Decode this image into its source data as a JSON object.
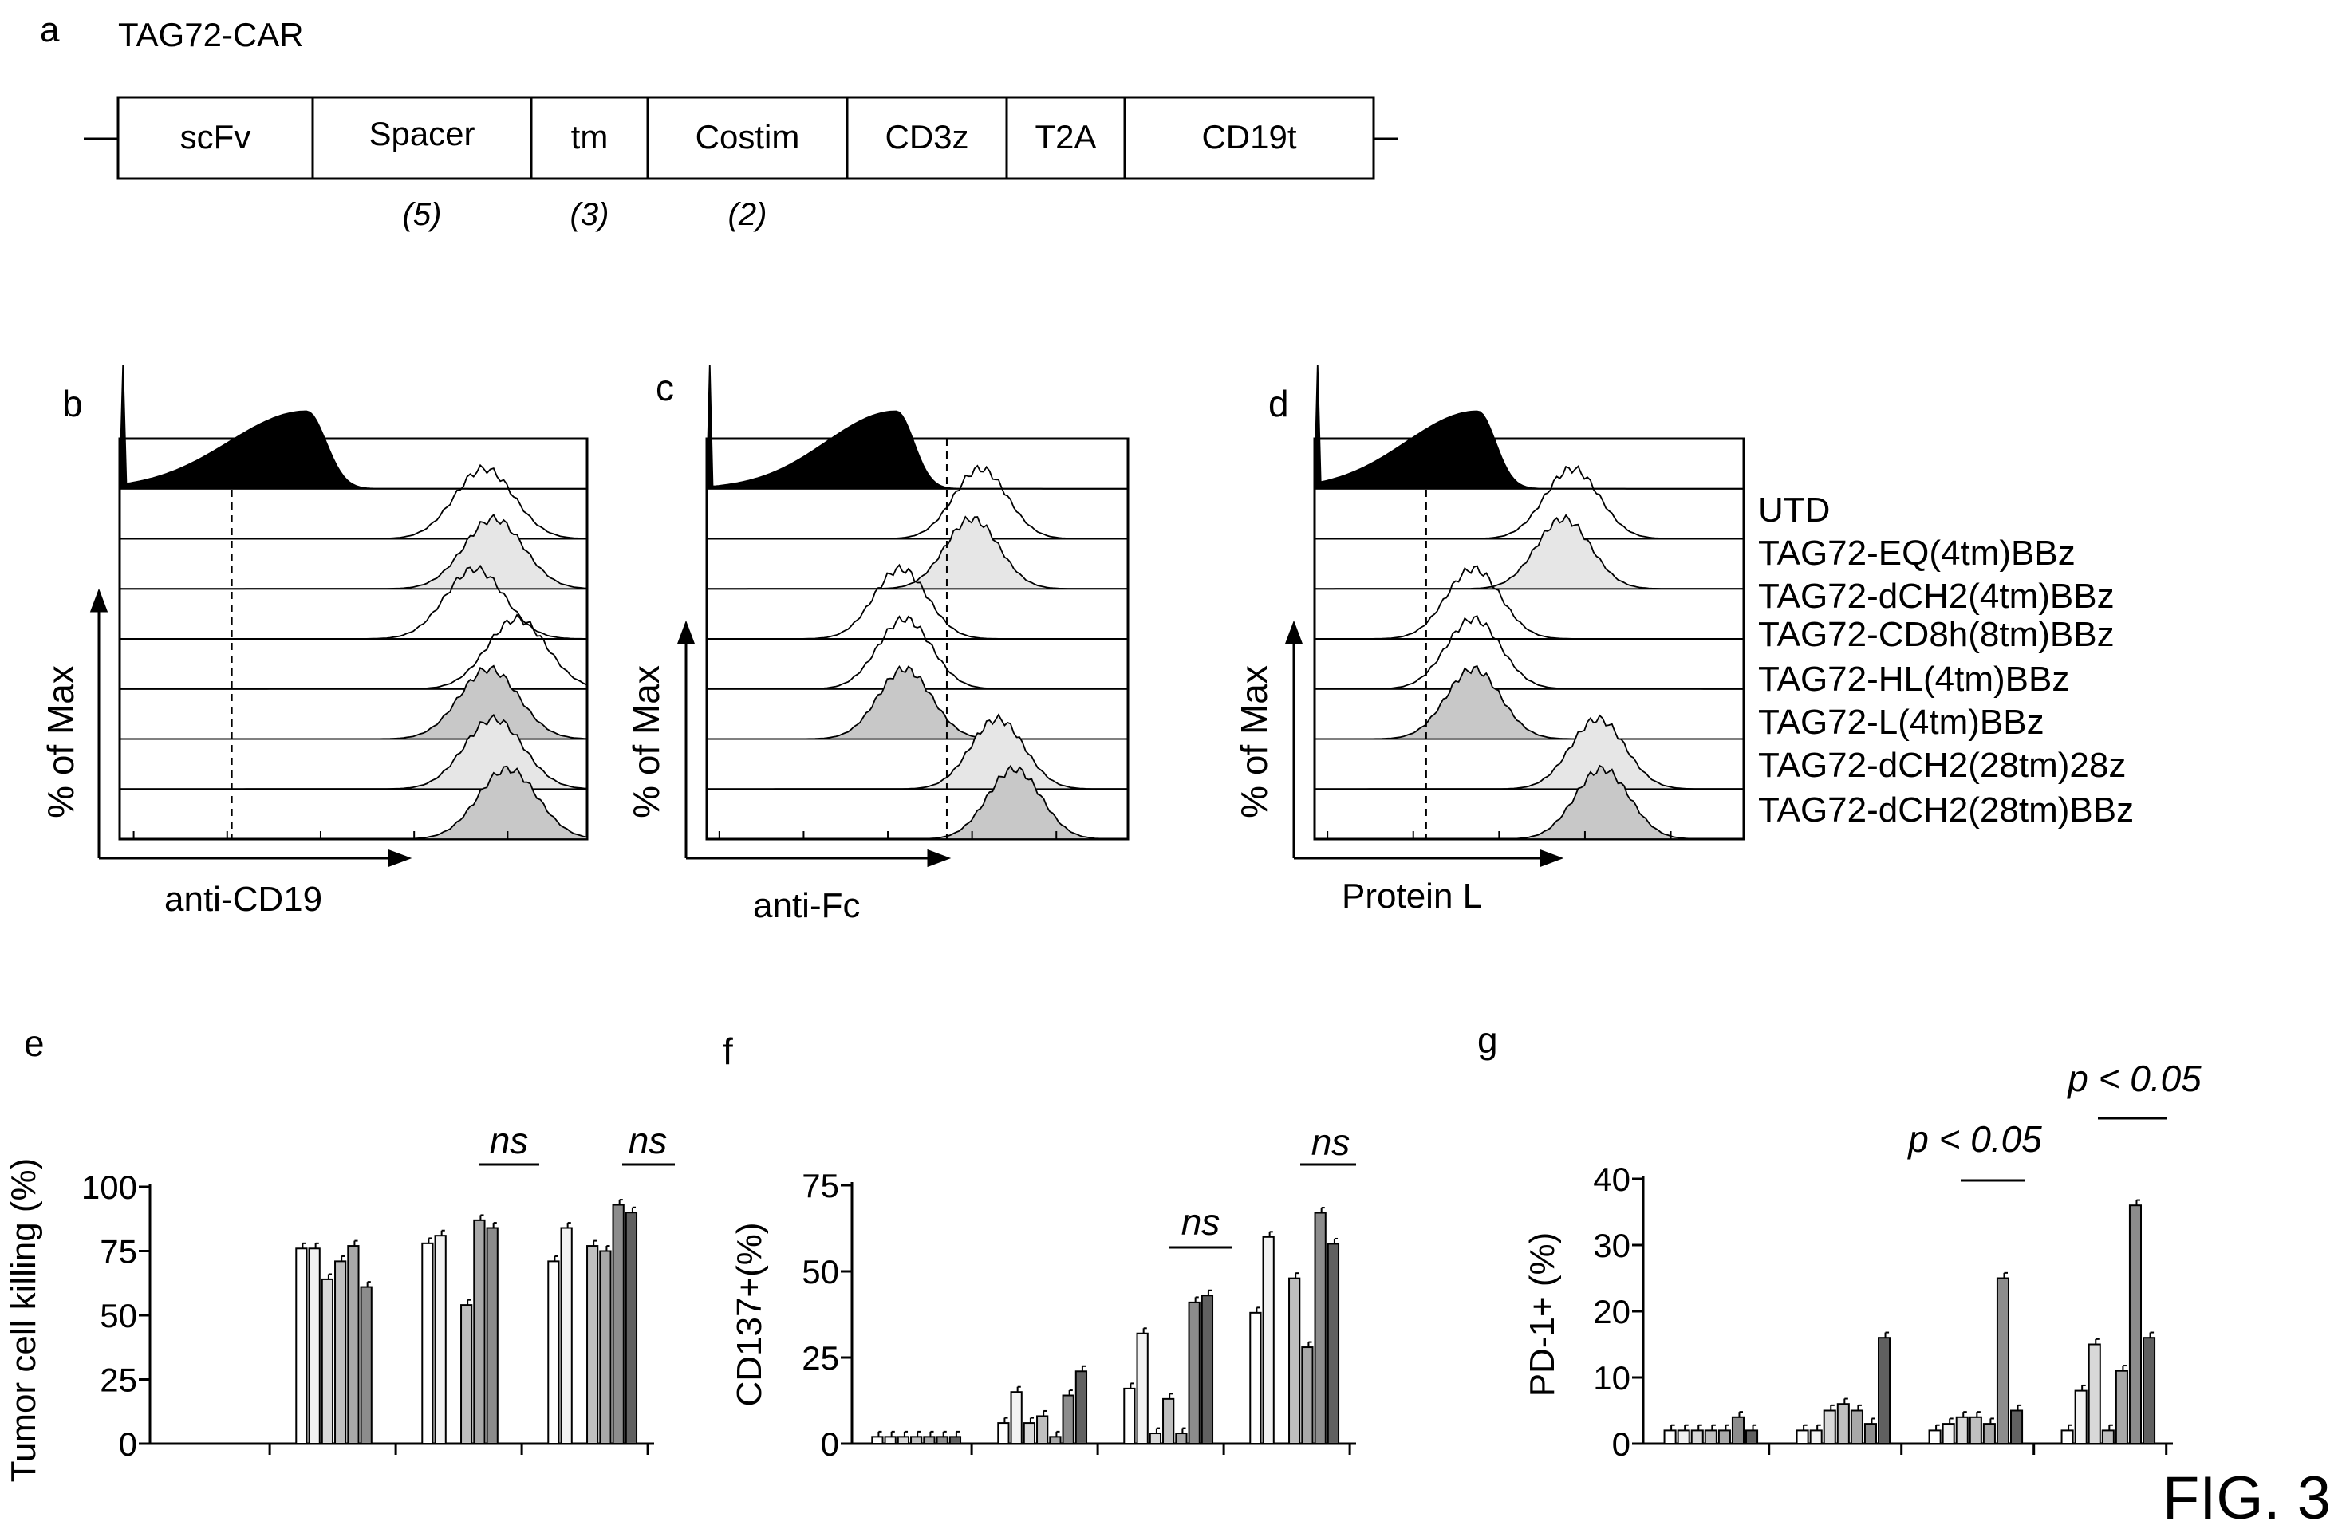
{
  "panel_letters": {
    "a": "a",
    "b": "b",
    "c": "c",
    "d": "d",
    "e": "e",
    "f": "f",
    "g": "g"
  },
  "construct": {
    "title": "TAG72-CAR",
    "segments": [
      "scFv",
      "Spacer",
      "tm",
      "Costim",
      "CD3z",
      "T2A",
      "CD19t"
    ],
    "counts": [
      "(5)",
      "(3)",
      "(2)"
    ]
  },
  "flow": {
    "y_label": "% of Max",
    "x_labels": [
      "anti-CD19",
      "anti-Fc",
      "Protein L"
    ],
    "legend": [
      "UTD",
      "TAG72-EQ(4tm)BBz",
      "TAG72-dCH2(4tm)BBz",
      "TAG72-CD8h(8tm)BBz",
      "TAG72-HL(4tm)BBz",
      "TAG72-L(4tm)BBz",
      "TAG72-dCH2(28tm)28z",
      "TAG72-dCH2(28tm)BBz"
    ],
    "peak_log_positions": {
      "b": [
        0.4,
        0.78,
        0.8,
        0.76,
        0.85,
        0.79,
        0.8,
        0.83
      ],
      "c": [
        0.45,
        0.65,
        0.63,
        0.46,
        0.47,
        0.47,
        0.69,
        0.73
      ],
      "d": [
        0.38,
        0.6,
        0.58,
        0.37,
        0.37,
        0.37,
        0.66,
        0.67
      ]
    }
  },
  "chart_data": [
    {
      "type": "bar",
      "panel": "e",
      "ylabel": "Tumor cell killing (%)",
      "ylim": [
        0,
        100
      ],
      "yticks": [
        "0",
        "25",
        "50",
        "75",
        "100"
      ],
      "groups": 4,
      "values": [
        [
          0,
          0,
          0,
          0,
          0,
          0,
          0
        ],
        [
          76,
          76,
          64,
          71,
          77,
          61,
          0
        ],
        [
          78,
          81,
          0,
          54,
          87,
          84,
          0
        ],
        [
          71,
          84,
          0,
          77,
          75,
          93,
          90
        ]
      ],
      "annotations": [
        "ns",
        "ns"
      ]
    },
    {
      "type": "bar",
      "panel": "f",
      "ylabel": "CD137+(%)",
      "ylim": [
        0,
        75
      ],
      "yticks": [
        "0",
        "25",
        "50",
        "75"
      ],
      "groups": 4,
      "values": [
        [
          2,
          2,
          2,
          2,
          2,
          2,
          2
        ],
        [
          6,
          15,
          6,
          8,
          2,
          14,
          21
        ],
        [
          16,
          32,
          3,
          13,
          3,
          41,
          43
        ],
        [
          38,
          60,
          0,
          48,
          28,
          67,
          58
        ]
      ],
      "annotations": [
        "ns",
        "ns"
      ]
    },
    {
      "type": "bar",
      "panel": "g",
      "ylabel": "PD-1+ (%)",
      "ylim": [
        0,
        40
      ],
      "yticks": [
        "0",
        "10",
        "20",
        "30",
        "40"
      ],
      "groups": 4,
      "values": [
        [
          2,
          2,
          2,
          2,
          2,
          4,
          2
        ],
        [
          2,
          2,
          5,
          6,
          5,
          3,
          16
        ],
        [
          2,
          3,
          4,
          4,
          3,
          25,
          5
        ],
        [
          2,
          8,
          15,
          2,
          11,
          36,
          16
        ]
      ],
      "annotations": [
        "p < 0.05",
        "p < 0.05"
      ]
    }
  ],
  "fig_label": "FIG. 3",
  "colors": {
    "bars": [
      "#ffffff",
      "#f2f2f2",
      "#d8d8d8",
      "#bfbfbf",
      "#a8a8a8",
      "#8c8c8c",
      "#606060"
    ],
    "fill_light": "#e6e6e6",
    "fill_mid": "#c8c8c8",
    "fill_dark": "#000000",
    "ink": "#000000"
  }
}
